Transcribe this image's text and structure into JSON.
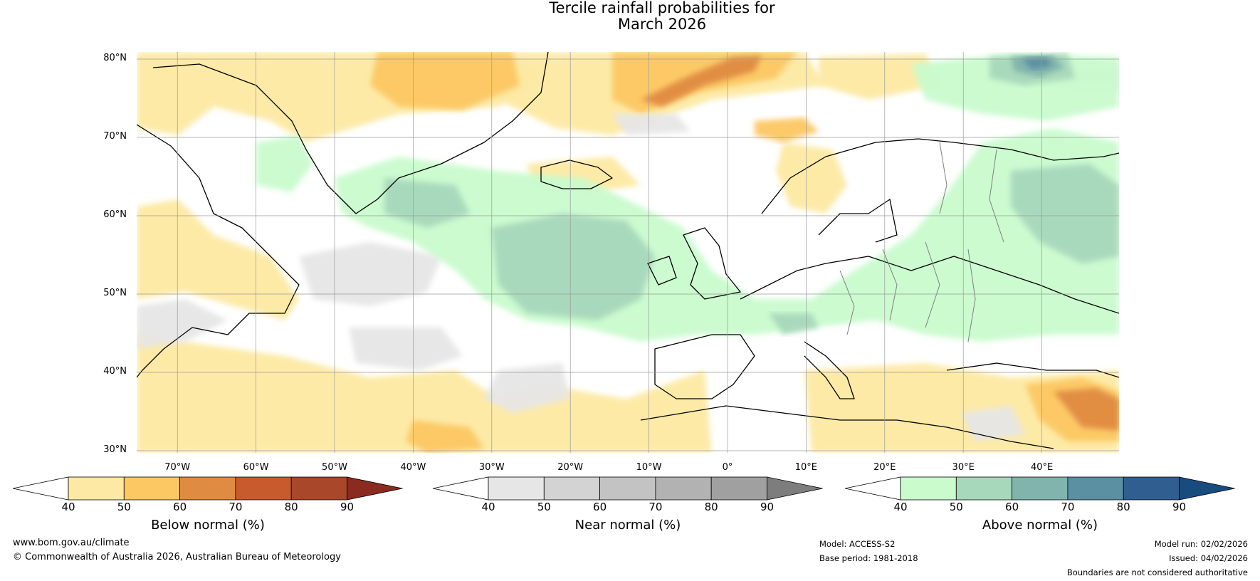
{
  "title": {
    "line1": "Tercile rainfall probabilities for",
    "line2": "March 2026"
  },
  "latitude_labels": [
    "80°N",
    "70°N",
    "60°N",
    "50°N",
    "40°N",
    "30°N"
  ],
  "longitude_labels": [
    "70°W",
    "60°W",
    "50°W",
    "40°W",
    "30°W",
    "20°W",
    "10°W",
    "0°",
    "10°E",
    "20°E",
    "30°E",
    "40°E"
  ],
  "colorbars": [
    {
      "title": "Below normal (%)",
      "ticks": [
        "40",
        "50",
        "60",
        "70",
        "80",
        "90"
      ],
      "colors": [
        "#ffffff",
        "#fde9a3",
        "#fcc864",
        "#e08b42",
        "#c75b2d",
        "#a9472a",
        "#8b2b20"
      ]
    },
    {
      "title": "Near normal (%)",
      "ticks": [
        "40",
        "50",
        "60",
        "70",
        "80",
        "90"
      ],
      "colors": [
        "#ffffff",
        "#e6e6e6",
        "#d3d3d3",
        "#c3c3c3",
        "#b2b2b2",
        "#a0a0a0",
        "#7d7d7d"
      ]
    },
    {
      "title": "Above normal (%)",
      "ticks": [
        "40",
        "50",
        "60",
        "70",
        "80",
        "90"
      ],
      "colors": [
        "#ffffff",
        "#c9fbcd",
        "#a8d8bc",
        "#80b4ac",
        "#5b8fa2",
        "#305e91",
        "#184c7f"
      ]
    }
  ],
  "map_colors": {
    "land_outline": "#000000",
    "border": "#808080",
    "gridline": "#9a9a9a",
    "below_light": "#fde9a3",
    "below_mid": "#fcc864",
    "below_dark": "#e08b42",
    "below_darker": "#c75b2d",
    "near_light": "#e6e6e6",
    "near_mid": "#d3d3d3",
    "above_light": "#c9fbcd",
    "above_mid": "#a8d8bc",
    "above_dark": "#80b4ac",
    "above_darker": "#5b8fa2",
    "above_darkest": "#305e91"
  },
  "footer": {
    "website": "www.bom.gov.au/climate",
    "copyright": "© Commonwealth of Australia 2026, Australian Bureau of Meteorology",
    "model": "Model: ACCESS-S2",
    "base_period": "Base period: 1981-2018",
    "model_run": "Model run: 02/02/2026",
    "issued": "Issued: 04/02/2026",
    "disclaimer": "Boundaries are not considered authoritative"
  }
}
